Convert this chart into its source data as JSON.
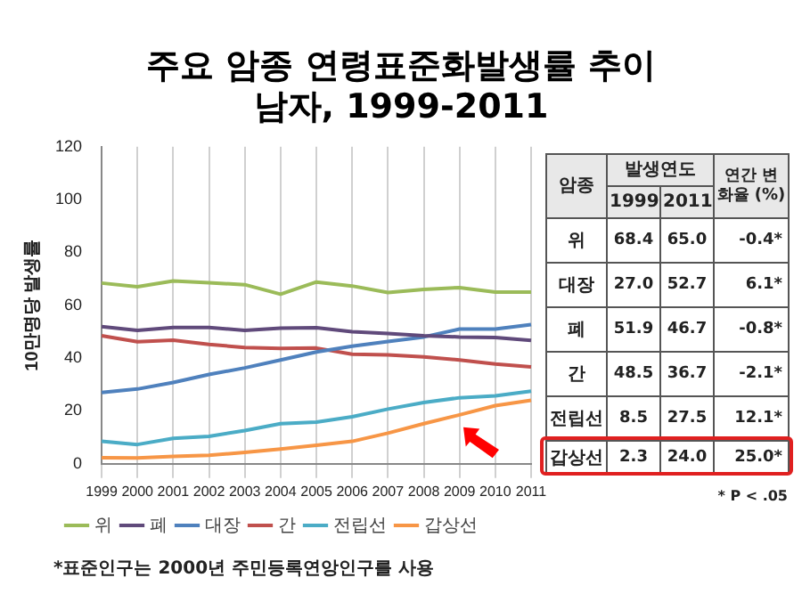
{
  "chart_data": [
    {
      "type": "line",
      "title": "주요 암종 연령표준화발생률 추이",
      "subtitle": "남자, 1999-2011",
      "ylabel": "10만명당 발생률",
      "categories": [
        "1999",
        "2000",
        "2001",
        "2002",
        "2003",
        "2004",
        "2005",
        "2006",
        "2007",
        "2008",
        "2009",
        "2010",
        "2011"
      ],
      "series": [
        {
          "name": "위",
          "color": "#9bbb59",
          "values": [
            68.4,
            67,
            69.2,
            68.5,
            67.8,
            64.2,
            68.8,
            67.3,
            64.8,
            66,
            66.7,
            65,
            65.0
          ]
        },
        {
          "name": "폐",
          "color": "#604a7b",
          "values": [
            51.9,
            50.5,
            51.6,
            51.6,
            50.5,
            51.3,
            51.5,
            50,
            49.3,
            48.5,
            48,
            47.8,
            46.7
          ]
        },
        {
          "name": "대장",
          "color": "#4f81bd",
          "values": [
            27.0,
            28.3,
            30.8,
            33.8,
            36.3,
            39.3,
            42.3,
            44.5,
            46.3,
            48,
            51,
            51,
            52.7
          ]
        },
        {
          "name": "간",
          "color": "#c0504d",
          "values": [
            48.5,
            46.2,
            46.8,
            45.2,
            44,
            43.7,
            43.8,
            41.5,
            41.2,
            40.5,
            39.3,
            37.8,
            36.7
          ]
        },
        {
          "name": "전립선",
          "color": "#4bacc6",
          "values": [
            8.5,
            7.3,
            9.6,
            10.4,
            12.6,
            15.2,
            15.8,
            17.8,
            20.7,
            23.2,
            25,
            25.7,
            27.5
          ]
        },
        {
          "name": "갑상선",
          "color": "#f79646",
          "values": [
            2.3,
            2.2,
            2.8,
            3.2,
            4.3,
            5.6,
            7,
            8.5,
            11.6,
            15.2,
            18.5,
            22,
            24.0
          ]
        }
      ],
      "ylim": [
        0,
        120
      ],
      "yticks": [
        0,
        20,
        40,
        60,
        80,
        100,
        120
      ],
      "grid": "x",
      "legend": "bottom",
      "marker": "none",
      "line_style": "solid",
      "annotations": [
        "*표준인구는 2000년 주민등록연앙인구를 사용"
      ]
    },
    {
      "type": "other",
      "categories": [
        "위",
        "대장",
        "폐",
        "간",
        "전립선",
        "갑상선"
      ],
      "series": [
        {
          "name": "1999",
          "values": [
            68.4,
            27.0,
            51.9,
            48.5,
            8.5,
            2.3
          ],
          "value_labels": [
            "68.4",
            "27.0",
            "51.9",
            "48.5",
            "8.5",
            "2.3"
          ]
        },
        {
          "name": "2011",
          "values": [
            65.0,
            52.7,
            46.7,
            36.7,
            27.5,
            24.0
          ],
          "value_labels": [
            "65.0",
            "52.7",
            "46.7",
            "36.7",
            "27.5",
            "24.0"
          ]
        },
        {
          "name": "연간 변화율 (%)",
          "values": [
            -0.4,
            6.1,
            -0.8,
            -2.1,
            12.1,
            25.0
          ],
          "value_labels": [
            "-0.4*",
            "6.1*",
            "-0.8*",
            "-2.1*",
            "12.1*",
            "25.0*"
          ]
        }
      ],
      "annotations": [
        "암종",
        "발생연도",
        "* P < .05"
      ]
    }
  ]
}
